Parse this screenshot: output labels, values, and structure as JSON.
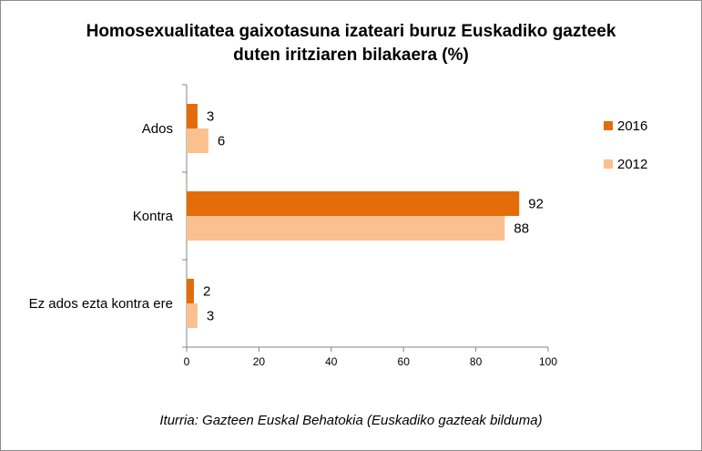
{
  "chart_data": {
    "type": "bar",
    "orientation": "horizontal",
    "title_line1": "Homosexualitatea gaixotasuna izateari buruz Euskadiko gazteek",
    "title_line2": "duten iritziaren bilakaera (%)",
    "categories": [
      "Ados",
      "Kontra",
      "Ez ados ezta kontra ere"
    ],
    "series": [
      {
        "name": "2016",
        "color": "#e46c0a",
        "values": [
          3,
          92,
          2
        ]
      },
      {
        "name": "2012",
        "color": "#fac090",
        "values": [
          6,
          88,
          3
        ]
      }
    ],
    "xlim": [
      0,
      100
    ],
    "xticks": [
      "0",
      "20",
      "40",
      "60",
      "80",
      "100"
    ],
    "grid": false,
    "legend_position": "right",
    "source": "Iturria: Gazteen Euskal Behatokia (Euskadiko gazteak bilduma)"
  }
}
